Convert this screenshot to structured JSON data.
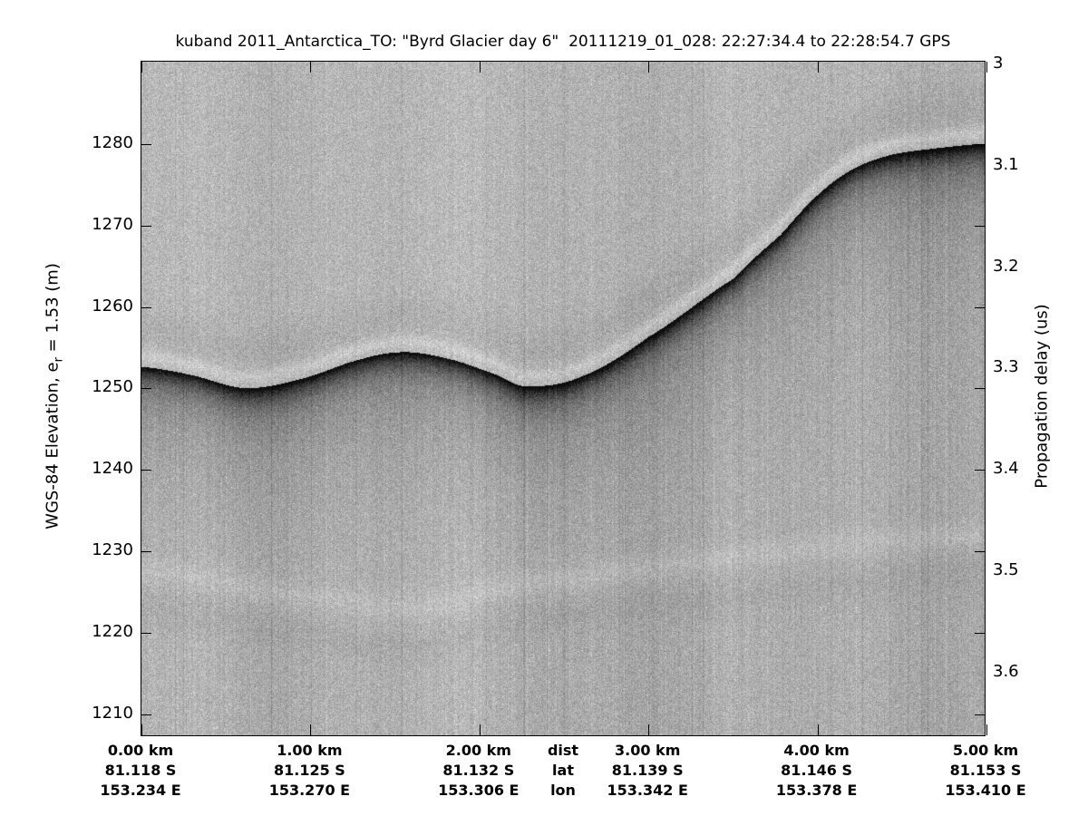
{
  "title": "kuband 2011_Antarctica_TO: \"Byrd Glacier day 6\"  20111219_01_028: 22:27:34.4 to 22:28:54.7 GPS",
  "left_axis": {
    "label_prefix": "WGS-84 Elevation, e",
    "label_sub": "r",
    "label_suffix": " = 1.53 (m)",
    "ticks": [
      1280,
      1270,
      1260,
      1250,
      1240,
      1230,
      1220,
      1210
    ]
  },
  "right_axis": {
    "label": "Propagation delay (us)",
    "ticks": [
      3,
      3.1,
      3.2,
      3.3,
      3.4,
      3.5,
      3.6
    ]
  },
  "bottom_axis": {
    "header": {
      "dist": "dist",
      "lat": "lat",
      "lon": "lon",
      "pos_km": 2.5
    },
    "columns": [
      {
        "dist": "0.00 km",
        "lat": "81.118 S",
        "lon": "153.234 E",
        "pos_km": 0
      },
      {
        "dist": "1.00 km",
        "lat": "81.125 S",
        "lon": "153.270 E",
        "pos_km": 1
      },
      {
        "dist": "2.00 km",
        "lat": "81.132 S",
        "lon": "153.306 E",
        "pos_km": 2
      },
      {
        "dist": "3.00 km",
        "lat": "81.139 S",
        "lon": "153.342 E",
        "pos_km": 3
      },
      {
        "dist": "4.00 km",
        "lat": "81.146 S",
        "lon": "153.378 E",
        "pos_km": 4
      },
      {
        "dist": "5.00 km",
        "lat": "81.153 S",
        "lon": "153.410 E",
        "pos_km": 5
      }
    ]
  },
  "chart_data": {
    "type": "heatmap",
    "title": "kuband 2011_Antarctica_TO: \"Byrd Glacier day 6\"  20111219_01_028: 22:27:34.4 to 22:28:54.7 GPS",
    "colormap": "grayscale radar echogram, strong return = dark",
    "x_units": "km",
    "x_range": [
      0,
      5
    ],
    "x_ticks_km": [
      0,
      1,
      2,
      3,
      4,
      5
    ],
    "elev_range": [
      1290.1,
      1207.2
    ],
    "elev_ticks": [
      1280,
      1270,
      1260,
      1250,
      1240,
      1230,
      1220,
      1210
    ],
    "delay_range": [
      2.997,
      3.664
    ],
    "delay_ticks": [
      3,
      3.1,
      3.2,
      3.3,
      3.4,
      3.5,
      3.6
    ],
    "surface_profile": {
      "km": [
        0,
        0.29,
        0.61,
        0.94,
        1.31,
        1.57,
        1.85,
        2.09,
        2.27,
        2.6,
        3.0,
        3.5,
        3.78,
        4.0,
        4.21,
        4.43,
        4.69,
        5.0
      ],
      "elevation_m": [
        1252.7,
        1251.7,
        1250.1,
        1251.2,
        1253.7,
        1254.5,
        1253.5,
        1251.8,
        1250.3,
        1251.5,
        1256.4,
        1263.5,
        1268.9,
        1273.8,
        1277.0,
        1278.7,
        1279.5,
        1280.1
      ]
    },
    "internal_layer": {
      "km": [
        0,
        0.78,
        1.64,
        2.17,
        2.66,
        3.19,
        3.73,
        4.26,
        4.64,
        5.0
      ],
      "elevation_m": [
        1227.8,
        1225.2,
        1223.2,
        1225.8,
        1227.1,
        1228.6,
        1229.9,
        1231.0,
        1231.7,
        1232.2
      ]
    },
    "noise": {
      "base_gray": 178,
      "speckle": 23
    }
  }
}
